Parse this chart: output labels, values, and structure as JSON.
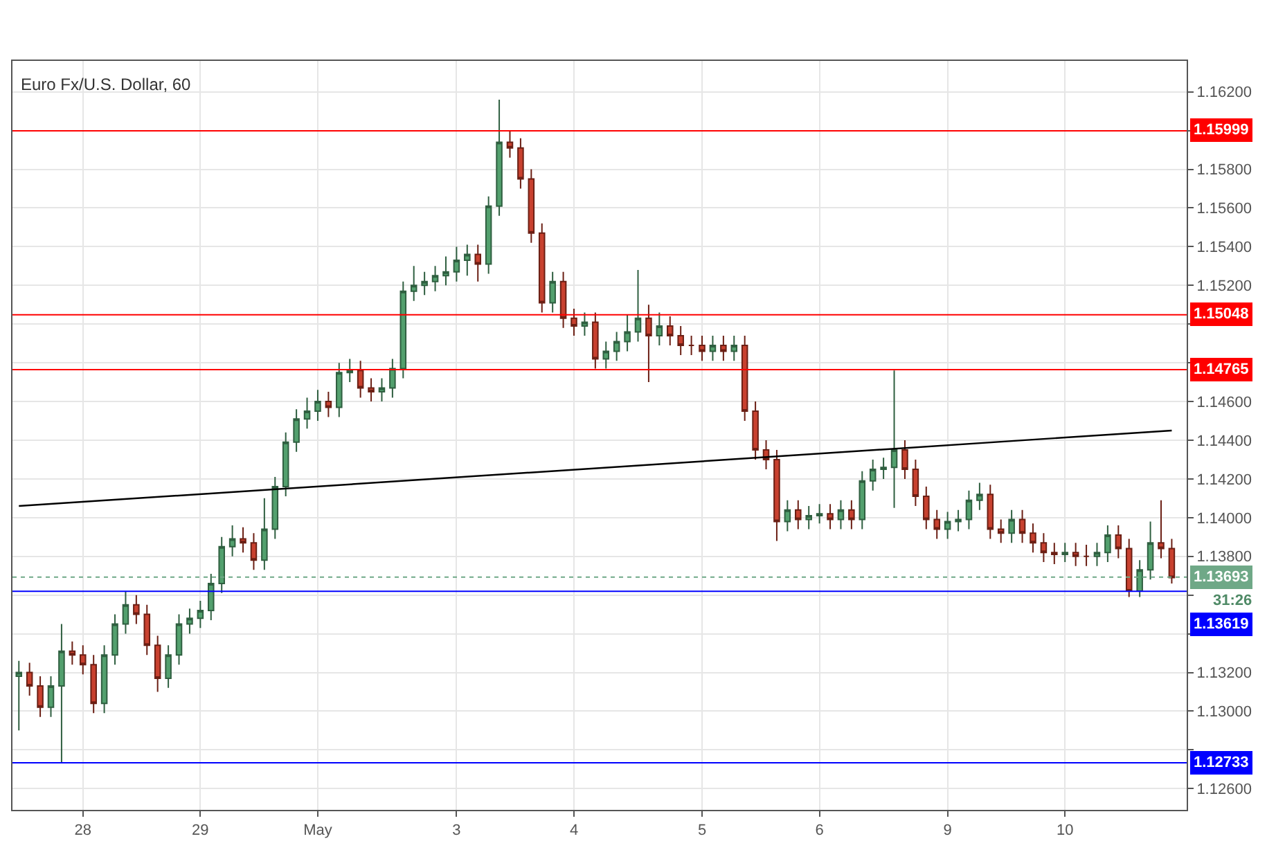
{
  "chart_data": {
    "type": "candlestick",
    "title": "Euro Fx/U.S. Dollar, 60",
    "categories": [
      null,
      null,
      null,
      null,
      null,
      null,
      "28",
      null,
      null,
      null,
      null,
      null,
      null,
      null,
      null,
      null,
      null,
      "29",
      null,
      null,
      null,
      null,
      null,
      null,
      null,
      null,
      null,
      null,
      "May",
      null,
      null,
      null,
      null,
      null,
      null,
      null,
      null,
      null,
      null,
      null,
      null,
      "3",
      null,
      null,
      null,
      null,
      null,
      null,
      null,
      null,
      null,
      null,
      "4",
      null,
      null,
      null,
      null,
      null,
      null,
      null,
      null,
      null,
      null,
      null,
      "5",
      null,
      null,
      null,
      null,
      null,
      null,
      null,
      null,
      null,
      null,
      "6",
      null,
      null,
      null,
      null,
      null,
      null,
      null,
      null,
      null,
      null,
      null,
      "9",
      null,
      null,
      null,
      null,
      null,
      null,
      null,
      null,
      null,
      null,
      "10",
      null,
      null,
      null,
      null,
      null,
      null,
      null,
      null,
      null,
      null
    ],
    "ohlc": [
      [
        1.1318,
        1.1326,
        1.129,
        1.132
      ],
      [
        1.132,
        1.1325,
        1.1308,
        1.1313
      ],
      [
        1.1313,
        1.1318,
        1.1297,
        1.1302
      ],
      [
        1.1302,
        1.1318,
        1.1297,
        1.1313
      ],
      [
        1.1313,
        1.1345,
        1.1273,
        1.1331
      ],
      [
        1.1331,
        1.1336,
        1.1324,
        1.1329
      ],
      [
        1.1329,
        1.1334,
        1.1319,
        1.1324
      ],
      [
        1.1324,
        1.1329,
        1.1299,
        1.1304
      ],
      [
        1.1304,
        1.1334,
        1.1299,
        1.1329
      ],
      [
        1.1329,
        1.135,
        1.1324,
        1.1345
      ],
      [
        1.1345,
        1.1362,
        1.134,
        1.1355
      ],
      [
        1.1355,
        1.136,
        1.1345,
        1.135
      ],
      [
        1.135,
        1.1355,
        1.1329,
        1.1334
      ],
      [
        1.1334,
        1.1339,
        1.131,
        1.1317
      ],
      [
        1.1317,
        1.1334,
        1.1312,
        1.1329
      ],
      [
        1.1329,
        1.135,
        1.1324,
        1.1345
      ],
      [
        1.1345,
        1.1353,
        1.134,
        1.1348
      ],
      [
        1.1348,
        1.1357,
        1.1343,
        1.1352
      ],
      [
        1.1352,
        1.1371,
        1.1347,
        1.1366
      ],
      [
        1.1366,
        1.139,
        1.1361,
        1.1385
      ],
      [
        1.1385,
        1.1396,
        1.138,
        1.1389
      ],
      [
        1.1389,
        1.1395,
        1.1382,
        1.1387
      ],
      [
        1.1387,
        1.1392,
        1.1373,
        1.1378
      ],
      [
        1.1378,
        1.141,
        1.1373,
        1.1394
      ],
      [
        1.1394,
        1.1421,
        1.1389,
        1.1416
      ],
      [
        1.1416,
        1.1444,
        1.1411,
        1.1439
      ],
      [
        1.1439,
        1.1456,
        1.1434,
        1.1451
      ],
      [
        1.1451,
        1.1462,
        1.1446,
        1.1455
      ],
      [
        1.1455,
        1.1466,
        1.145,
        1.146
      ],
      [
        1.146,
        1.1465,
        1.1452,
        1.1457
      ],
      [
        1.1457,
        1.148,
        1.1452,
        1.1475
      ],
      [
        1.1475,
        1.1482,
        1.147,
        1.1476
      ],
      [
        1.1476,
        1.1481,
        1.1462,
        1.1467
      ],
      [
        1.1467,
        1.1472,
        1.146,
        1.1465
      ],
      [
        1.1465,
        1.1472,
        1.146,
        1.1467
      ],
      [
        1.1467,
        1.1482,
        1.1462,
        1.1477
      ],
      [
        1.1477,
        1.1522,
        1.1472,
        1.1517
      ],
      [
        1.1517,
        1.153,
        1.1512,
        1.152
      ],
      [
        1.152,
        1.1527,
        1.1515,
        1.1522
      ],
      [
        1.1522,
        1.153,
        1.1517,
        1.1525
      ],
      [
        1.1525,
        1.1535,
        1.152,
        1.1527
      ],
      [
        1.1527,
        1.154,
        1.1522,
        1.1533
      ],
      [
        1.1533,
        1.1541,
        1.1525,
        1.1536
      ],
      [
        1.1536,
        1.1541,
        1.1522,
        1.1531
      ],
      [
        1.1531,
        1.1566,
        1.1526,
        1.1561
      ],
      [
        1.1561,
        1.1616,
        1.1556,
        1.1594
      ],
      [
        1.1594,
        1.16,
        1.1586,
        1.1591
      ],
      [
        1.1591,
        1.1596,
        1.157,
        1.1575
      ],
      [
        1.1575,
        1.158,
        1.1542,
        1.1547
      ],
      [
        1.1547,
        1.1552,
        1.1506,
        1.1511
      ],
      [
        1.1511,
        1.1527,
        1.1506,
        1.1522
      ],
      [
        1.1522,
        1.1527,
        1.1498,
        1.1503
      ],
      [
        1.1503,
        1.1508,
        1.1494,
        1.1499
      ],
      [
        1.1499,
        1.1506,
        1.1494,
        1.1501
      ],
      [
        1.1501,
        1.1506,
        1.1477,
        1.1482
      ],
      [
        1.1482,
        1.1491,
        1.1477,
        1.1486
      ],
      [
        1.1486,
        1.1496,
        1.1481,
        1.1491
      ],
      [
        1.1491,
        1.1505,
        1.1486,
        1.1496
      ],
      [
        1.1496,
        1.1528,
        1.1491,
        1.1503
      ],
      [
        1.1503,
        1.151,
        1.147,
        1.1494
      ],
      [
        1.1494,
        1.1506,
        1.1489,
        1.1499
      ],
      [
        1.1499,
        1.1504,
        1.1489,
        1.1494
      ],
      [
        1.1494,
        1.1499,
        1.1484,
        1.1489
      ],
      [
        1.1489,
        1.1494,
        1.1484,
        1.1489
      ],
      [
        1.1489,
        1.1494,
        1.1481,
        1.1486
      ],
      [
        1.1486,
        1.1494,
        1.1481,
        1.1489
      ],
      [
        1.1489,
        1.1494,
        1.1481,
        1.1486
      ],
      [
        1.1486,
        1.1494,
        1.1481,
        1.1489
      ],
      [
        1.1489,
        1.1494,
        1.145,
        1.1455
      ],
      [
        1.1455,
        1.146,
        1.143,
        1.1435
      ],
      [
        1.1435,
        1.144,
        1.1425,
        1.143
      ],
      [
        1.143,
        1.1435,
        1.1388,
        1.1398
      ],
      [
        1.1398,
        1.1409,
        1.1393,
        1.1404
      ],
      [
        1.1404,
        1.1409,
        1.1394,
        1.1399
      ],
      [
        1.1399,
        1.1406,
        1.1394,
        1.1401
      ],
      [
        1.1401,
        1.1407,
        1.1397,
        1.1402
      ],
      [
        1.1402,
        1.1407,
        1.1394,
        1.1399
      ],
      [
        1.1399,
        1.1409,
        1.1394,
        1.1404
      ],
      [
        1.1404,
        1.1409,
        1.1394,
        1.1399
      ],
      [
        1.1399,
        1.1424,
        1.1394,
        1.1419
      ],
      [
        1.1419,
        1.143,
        1.1414,
        1.1425
      ],
      [
        1.1425,
        1.1431,
        1.142,
        1.1426
      ],
      [
        1.1426,
        1.1476,
        1.1405,
        1.1435
      ],
      [
        1.1435,
        1.144,
        1.142,
        1.1425
      ],
      [
        1.1425,
        1.143,
        1.1406,
        1.1411
      ],
      [
        1.1411,
        1.1416,
        1.1394,
        1.1399
      ],
      [
        1.1399,
        1.1404,
        1.1389,
        1.1394
      ],
      [
        1.1394,
        1.1403,
        1.1389,
        1.1398
      ],
      [
        1.1398,
        1.1404,
        1.1393,
        1.1399
      ],
      [
        1.1399,
        1.1414,
        1.1394,
        1.1409
      ],
      [
        1.1409,
        1.1418,
        1.1404,
        1.1412
      ],
      [
        1.1412,
        1.1417,
        1.1389,
        1.1394
      ],
      [
        1.1394,
        1.1399,
        1.1387,
        1.1392
      ],
      [
        1.1392,
        1.1404,
        1.1387,
        1.1399
      ],
      [
        1.1399,
        1.1404,
        1.1387,
        1.1392
      ],
      [
        1.1392,
        1.1397,
        1.1382,
        1.1387
      ],
      [
        1.1387,
        1.1392,
        1.1377,
        1.1382
      ],
      [
        1.1382,
        1.1387,
        1.1376,
        1.1381
      ],
      [
        1.1381,
        1.1387,
        1.1377,
        1.1382
      ],
      [
        1.1382,
        1.1387,
        1.1375,
        1.138
      ],
      [
        1.138,
        1.1386,
        1.1375,
        1.138
      ],
      [
        1.138,
        1.1387,
        1.1375,
        1.1382
      ],
      [
        1.1382,
        1.1396,
        1.1377,
        1.1391
      ],
      [
        1.1391,
        1.1396,
        1.1379,
        1.1384
      ],
      [
        1.1384,
        1.1389,
        1.1359,
        1.1362
      ],
      [
        1.1362,
        1.1378,
        1.1359,
        1.1373
      ],
      [
        1.1373,
        1.1398,
        1.1368,
        1.1387
      ],
      [
        1.1387,
        1.1409,
        1.1379,
        1.1384
      ],
      [
        1.1384,
        1.1389,
        1.1366,
        1.1369
      ]
    ],
    "series": [
      {
        "type": "line",
        "color": "#000000",
        "values": [
          1.1406,
          null,
          null,
          null,
          null,
          null,
          null,
          null,
          null,
          null,
          null,
          null,
          null,
          null,
          null,
          null,
          null,
          null,
          null,
          null,
          null,
          null,
          null,
          null,
          null,
          null,
          null,
          null,
          null,
          null,
          null,
          null,
          null,
          null,
          null,
          null,
          null,
          null,
          null,
          null,
          null,
          null,
          null,
          null,
          null,
          null,
          null,
          null,
          null,
          null,
          null,
          null,
          null,
          null,
          null,
          null,
          null,
          null,
          null,
          null,
          null,
          null,
          null,
          null,
          null,
          null,
          null,
          null,
          null,
          null,
          null,
          null,
          null,
          null,
          null,
          null,
          null,
          null,
          null,
          null,
          null,
          null,
          null,
          null,
          null,
          null,
          null,
          null,
          null,
          null,
          null,
          null,
          null,
          null,
          null,
          null,
          null,
          null,
          null,
          null,
          null,
          null,
          null,
          null,
          null,
          null,
          null,
          null,
          1.1445
        ]
      }
    ],
    "ylim": [
      1.1249,
      1.1636
    ],
    "yticks": [
      {
        "value": 1.126,
        "label": "1.12600"
      },
      {
        "value": 1.128,
        "label": null
      },
      {
        "value": 1.13,
        "label": "1.13000"
      },
      {
        "value": 1.132,
        "label": "1.13200"
      },
      {
        "value": 1.134,
        "label": null
      },
      {
        "value": 1.136,
        "label": null
      },
      {
        "value": 1.138,
        "label": "1.13800"
      },
      {
        "value": 1.14,
        "label": "1.14000"
      },
      {
        "value": 1.142,
        "label": "1.14200"
      },
      {
        "value": 1.144,
        "label": "1.14400"
      },
      {
        "value": 1.146,
        "label": "1.14600"
      },
      {
        "value": 1.148,
        "label": null
      },
      {
        "value": 1.15,
        "label": null
      },
      {
        "value": 1.152,
        "label": "1.15200"
      },
      {
        "value": 1.154,
        "label": "1.15400"
      },
      {
        "value": 1.156,
        "label": "1.15600"
      },
      {
        "value": 1.158,
        "label": "1.15800"
      },
      {
        "value": 1.16,
        "label": null
      },
      {
        "value": 1.162,
        "label": "1.16200"
      }
    ],
    "ref_lines": [
      {
        "axis": "y",
        "value": 1.15999,
        "label": "1.15999",
        "color": "#ff0000"
      },
      {
        "axis": "y",
        "value": 1.15048,
        "label": "1.15048",
        "color": "#ff0000"
      },
      {
        "axis": "y",
        "value": 1.14765,
        "label": "1.14765",
        "color": "#ff0000"
      },
      {
        "axis": "y",
        "value": 1.13693,
        "label": "1.13693",
        "color": "#6fa887",
        "line_style": "dotted"
      },
      {
        "axis": "y",
        "value": 1.13619,
        "label": "1.13619",
        "color": "#0000ff"
      },
      {
        "axis": "y",
        "value": 1.12733,
        "label": "1.12733",
        "color": "#0000ff"
      }
    ],
    "annotations": [
      "31:26"
    ],
    "grid": true
  }
}
